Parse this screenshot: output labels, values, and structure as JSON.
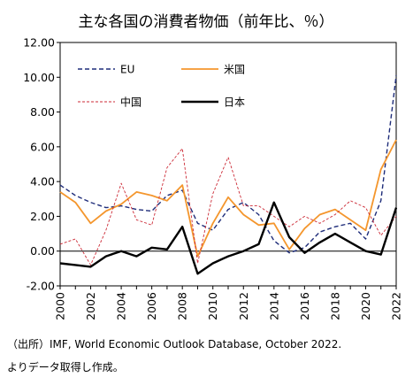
{
  "chart_data": {
    "type": "line",
    "title": "主な各国の消費者物価（前年比、％）",
    "x": [
      2000,
      2001,
      2002,
      2003,
      2004,
      2005,
      2006,
      2007,
      2008,
      2009,
      2010,
      2011,
      2012,
      2013,
      2014,
      2015,
      2016,
      2017,
      2018,
      2019,
      2020,
      2021,
      2022
    ],
    "xticks": [
      "2000",
      "2002",
      "2004",
      "2006",
      "2008",
      "2010",
      "2012",
      "2014",
      "2016",
      "2018",
      "2020",
      "2022"
    ],
    "ylim": [
      -2,
      12
    ],
    "yticks": [
      "12.00",
      "10.00",
      "8.00",
      "6.00",
      "4.00",
      "2.00",
      "0.00",
      "-2.00"
    ],
    "grid": false,
    "legend_position": "top-left",
    "series": [
      {
        "name": "EU",
        "color": "#1f2d7a",
        "style": "dashed",
        "values": [
          3.8,
          3.2,
          2.8,
          2.5,
          2.6,
          2.4,
          2.3,
          3.2,
          3.5,
          1.6,
          1.2,
          2.4,
          2.8,
          2.1,
          0.6,
          -0.1,
          0.2,
          1.1,
          1.4,
          1.6,
          0.7,
          2.9,
          10.1
        ]
      },
      {
        "name": "米国",
        "color": "#f4962d",
        "style": "solid",
        "values": [
          3.4,
          2.8,
          1.6,
          2.3,
          2.7,
          3.4,
          3.2,
          2.9,
          3.8,
          -0.3,
          1.6,
          3.1,
          2.1,
          1.5,
          1.6,
          0.1,
          1.3,
          2.1,
          2.4,
          1.8,
          1.2,
          4.7,
          6.4
        ]
      },
      {
        "name": "中国",
        "color": "#cc2a36",
        "style": "thin-dashed",
        "values": [
          0.4,
          0.7,
          -0.8,
          1.2,
          3.9,
          1.8,
          1.5,
          4.8,
          5.9,
          -0.7,
          3.3,
          5.4,
          2.6,
          2.6,
          2.0,
          1.4,
          2.0,
          1.6,
          2.1,
          2.9,
          2.5,
          0.9,
          2.0
        ]
      },
      {
        "name": "日本",
        "color": "#000000",
        "style": "bold",
        "values": [
          -0.7,
          -0.8,
          -0.9,
          -0.3,
          0.0,
          -0.3,
          0.2,
          0.1,
          1.4,
          -1.3,
          -0.7,
          -0.3,
          0.0,
          0.4,
          2.8,
          0.8,
          -0.1,
          0.5,
          1.0,
          0.5,
          0.0,
          -0.2,
          2.5
        ]
      }
    ]
  },
  "source": {
    "line1": "（出所）IMF, World Economic Outlook Database, October 2022.",
    "line2": "よりデータ取得し作成。"
  }
}
